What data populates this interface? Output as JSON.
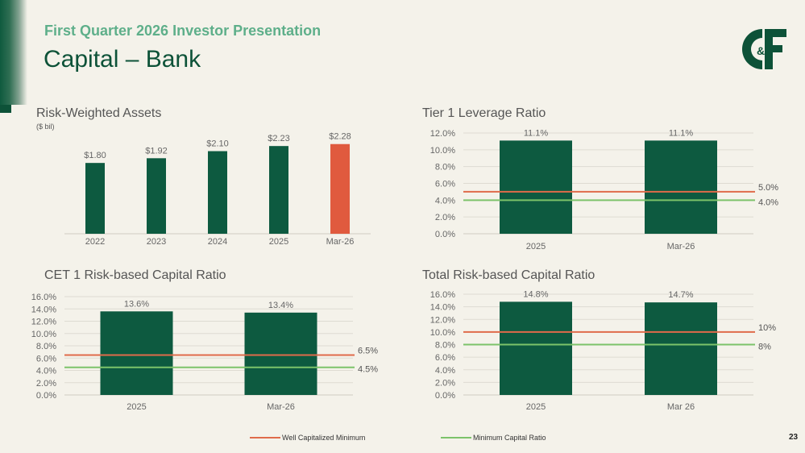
{
  "header": {
    "kicker": "First Quarter 2026 Investor Presentation",
    "title": "Capital – Bank"
  },
  "logo": {
    "text": "C&F"
  },
  "colors": {
    "bar": "#0d5a40",
    "highlight": "#e05a3e",
    "well_capitalized": "#e06b4a",
    "minimum_capital": "#7cc36a",
    "grid": "#dedbd2",
    "axis_text": "#666666"
  },
  "legend": {
    "well_capitalized": "Well Capitalized Minimum",
    "minimum_capital": "Minimum Capital Ratio"
  },
  "page_number": "23",
  "chart_data": [
    {
      "id": "rwa",
      "type": "bar",
      "title": "Risk-Weighted Assets",
      "subtitle": "($ bil)",
      "categories": [
        "2022",
        "2023",
        "2024",
        "2025",
        "Mar-26"
      ],
      "values": [
        1.8,
        1.92,
        2.1,
        2.23,
        2.28
      ],
      "labels": [
        "$1.80",
        "$1.92",
        "$2.10",
        "$2.23",
        "$2.28"
      ],
      "highlight_index": 4,
      "ylim": [
        0,
        2.5
      ],
      "grid": false
    },
    {
      "id": "tier1",
      "type": "bar",
      "title": "Tier 1 Leverage Ratio",
      "categories": [
        "2025",
        "Mar-26"
      ],
      "values": [
        11.1,
        11.1
      ],
      "labels": [
        "11.1%",
        "11.1%"
      ],
      "ylim": [
        0,
        12
      ],
      "yticks": [
        "0.0%",
        "2.0%",
        "4.0%",
        "6.0%",
        "8.0%",
        "10.0%",
        "12.0%"
      ],
      "grid": true,
      "reference_lines": [
        {
          "name": "Well Capitalized Minimum",
          "value": 5.0,
          "label": "5.0%"
        },
        {
          "name": "Minimum Capital Ratio",
          "value": 4.0,
          "label": "4.0%"
        }
      ]
    },
    {
      "id": "cet1",
      "type": "bar",
      "title": "CET 1 Risk-based Capital Ratio",
      "categories": [
        "2025",
        "Mar-26"
      ],
      "values": [
        13.6,
        13.4
      ],
      "labels": [
        "13.6%",
        "13.4%"
      ],
      "ylim": [
        0,
        16
      ],
      "yticks": [
        "0.0%",
        "2.0%",
        "4.0%",
        "6.0%",
        "8.0%",
        "10.0%",
        "12.0%",
        "14.0%",
        "16.0%"
      ],
      "grid": true,
      "reference_lines": [
        {
          "name": "Well Capitalized Minimum",
          "value": 6.5,
          "label": "6.5%"
        },
        {
          "name": "Minimum Capital Ratio",
          "value": 4.5,
          "label": "4.5%"
        }
      ]
    },
    {
      "id": "total",
      "type": "bar",
      "title": "Total Risk-based Capital Ratio",
      "categories": [
        "2025",
        "Mar 26"
      ],
      "values": [
        14.8,
        14.7
      ],
      "labels": [
        "14.8%",
        "14.7%"
      ],
      "ylim": [
        0,
        16
      ],
      "yticks": [
        "0.0%",
        "2.0%",
        "4.0%",
        "6.0%",
        "8.0%",
        "10.0%",
        "12.0%",
        "14.0%",
        "16.0%"
      ],
      "grid": true,
      "reference_lines": [
        {
          "name": "Well Capitalized Minimum",
          "value": 10,
          "label": "10%"
        },
        {
          "name": "Minimum Capital Ratio",
          "value": 8,
          "label": "8%"
        }
      ]
    }
  ]
}
